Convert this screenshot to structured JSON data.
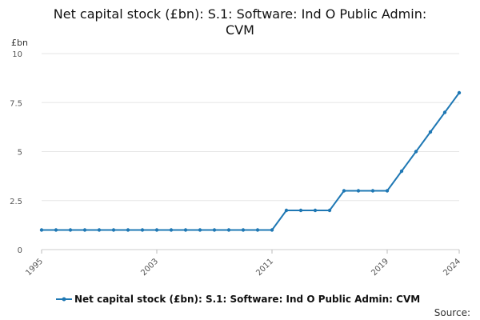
{
  "chart_data": {
    "type": "line",
    "title": "Net capital stock (£bn): S.1: Software: Ind O Public Admin: CVM",
    "ylabel": "£bn",
    "xlabel": "",
    "ylim": [
      0,
      10
    ],
    "yticks": [
      0,
      2.5,
      5,
      7.5,
      10
    ],
    "ytick_labels": [
      "0",
      "2.5",
      "5",
      "7.5",
      "10"
    ],
    "xticks": [
      1995,
      2003,
      2011,
      2019,
      2024
    ],
    "xlim": [
      1995,
      2024
    ],
    "grid": true,
    "legend_position": "bottom",
    "series": [
      {
        "name": "Net capital stock (£bn): S.1: Software: Ind O Public Admin: CVM",
        "color": "#1f78b4",
        "x": [
          1995,
          1996,
          1997,
          1998,
          1999,
          2000,
          2001,
          2002,
          2003,
          2004,
          2005,
          2006,
          2007,
          2008,
          2009,
          2010,
          2011,
          2012,
          2013,
          2014,
          2015,
          2016,
          2017,
          2018,
          2019,
          2020,
          2021,
          2022,
          2023,
          2024
        ],
        "values": [
          1,
          1,
          1,
          1,
          1,
          1,
          1,
          1,
          1,
          1,
          1,
          1,
          1,
          1,
          1,
          1,
          1,
          2,
          2,
          2,
          2,
          3,
          3,
          3,
          3,
          4,
          5,
          6,
          7,
          8
        ]
      }
    ]
  },
  "source_label": "Source:"
}
